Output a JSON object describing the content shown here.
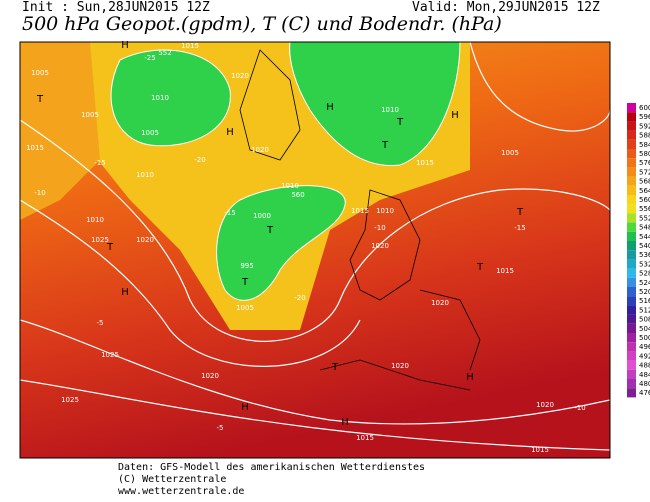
{
  "header": {
    "init": "Init : Sun,28JUN2015 12Z",
    "valid": "Valid: Mon,29JUN2015 12Z",
    "title": "500 hPa Geopot.(gpdm), T (C) und Bodendr. (hPa)"
  },
  "colorbar": [
    600,
    596,
    592,
    588,
    584,
    580,
    576,
    572,
    568,
    564,
    560,
    556,
    552,
    548,
    544,
    540,
    536,
    532,
    528,
    524,
    520,
    516,
    512,
    508,
    504,
    500,
    496,
    492,
    488,
    484,
    480,
    476
  ],
  "map": {
    "labels": [
      "1005",
      "1005",
      "1010",
      "1005",
      "1015",
      "1020",
      "1010",
      "1010",
      "1015",
      "1020",
      "1010",
      "1025",
      "1020",
      "1000",
      "995",
      "1005",
      "1010",
      "1015",
      "1020",
      "1015",
      "1010",
      "1015",
      "1005",
      "1020",
      "1025",
      "1020",
      "1025",
      "1020",
      "1015",
      "1020",
      "1015",
      "H",
      "H",
      "H",
      "H",
      "H",
      "H",
      "H",
      "H",
      "T",
      "T",
      "T",
      "T",
      "T",
      "T",
      "T",
      "T",
      "T",
      "-15",
      "-20",
      "-25",
      "-10",
      "-15",
      "-20",
      "-10",
      "-15",
      "-5",
      "-10",
      "-5",
      "552",
      "560"
    ]
  },
  "footer": [
    "Daten: GFS-Modell des amerikanischen Wetterdienstes",
    "(C) Wetterzentrale",
    "www.wetterzentrale.de"
  ]
}
